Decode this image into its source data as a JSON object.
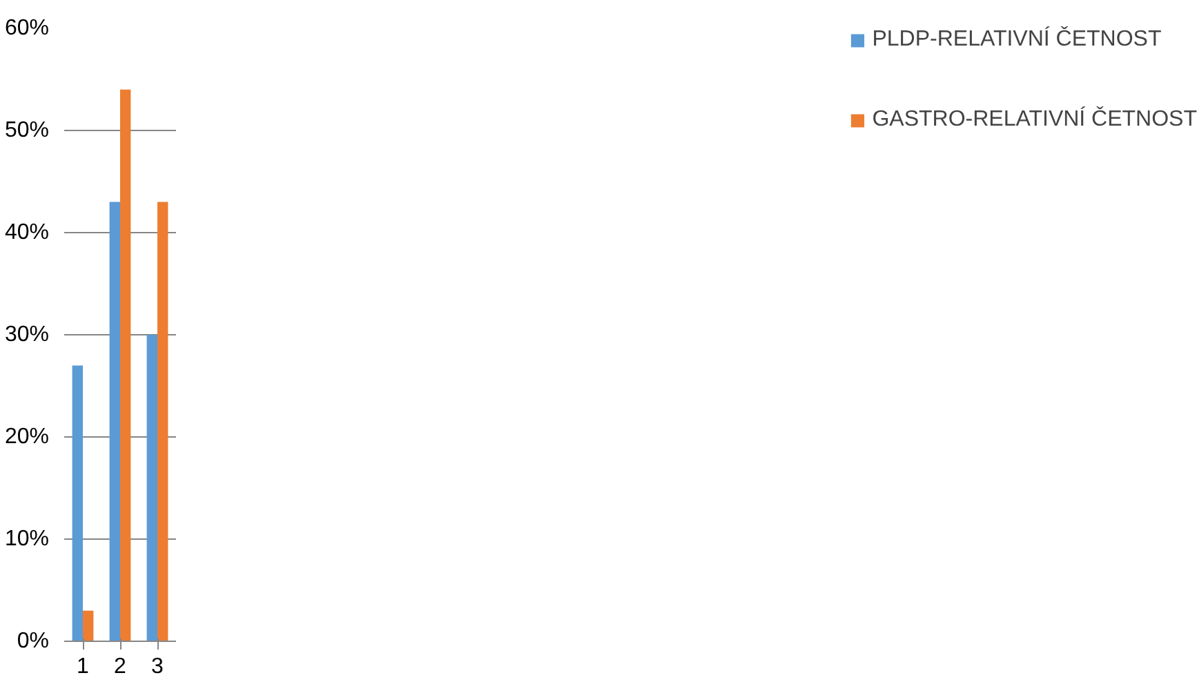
{
  "chart_data": {
    "type": "bar",
    "categories": [
      "1",
      "2",
      "3"
    ],
    "series": [
      {
        "name": "PLDP-RELATIVNÍ ČETNOST",
        "color": "#5b9bd5",
        "values": [
          27,
          43,
          30
        ]
      },
      {
        "name": "GASTRO-RELATIVNÍ ČETNOST",
        "color": "#ed7d31",
        "values": [
          3,
          54,
          43
        ]
      }
    ],
    "ylim": [
      0,
      60
    ],
    "yticks": [
      {
        "value": 0,
        "label": "0%"
      },
      {
        "value": 10,
        "label": "10%"
      },
      {
        "value": 20,
        "label": "20%"
      },
      {
        "value": 30,
        "label": "30%"
      },
      {
        "value": 40,
        "label": "40%"
      },
      {
        "value": 50,
        "label": "50%"
      },
      {
        "value": 60,
        "label": "60%"
      }
    ],
    "grid": "y",
    "legend": "right"
  }
}
